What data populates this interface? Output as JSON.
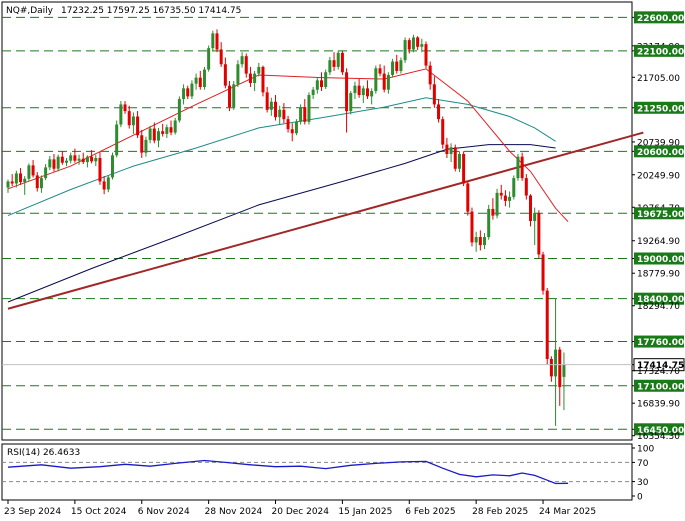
{
  "header": {
    "symbol": "NQ#,Daily",
    "ohlc": "17232.25 17597.25 16735.50 17414.75"
  },
  "colors": {
    "bull": "#2e8b2e",
    "bear": "#e00000",
    "ema20": "#e02020",
    "ema50": "#1f8a8a",
    "ema200": "#0a0a50",
    "trend": "#a02828",
    "level": "#1a7a1a",
    "rsi": "#1a1acc",
    "price_box": "#000000"
  },
  "chart_data": [
    {
      "type": "candlestick",
      "title": "NQ#,Daily",
      "ylim": [
        16350,
        22650
      ],
      "y_ticks": [
        "22600.00",
        "22174.90",
        "22100.00",
        "21705.00",
        "21250.00",
        "20739.90",
        "20600.00",
        "20249.90",
        "19764.70",
        "19675.00",
        "19264.90",
        "19000.00",
        "18779.90",
        "18400.00",
        "18294.70",
        "17760.00",
        "17414.75",
        "17324.70",
        "17100.00",
        "16839.90",
        "16450.00",
        "16354.30"
      ],
      "x_ticks": [
        "23 Sep 2024",
        "15 Oct 2024",
        "6 Nov 2024",
        "28 Nov 2024",
        "20 Dec 2024",
        "15 Jan 2025",
        "6 Feb 2025",
        "28 Feb 2025",
        "24 Mar 2025"
      ],
      "x_tick_index": [
        0,
        16,
        32,
        48,
        64,
        80,
        96,
        112,
        128
      ],
      "levels": [
        {
          "label": "22600.00",
          "value": 22600
        },
        {
          "label": "22100.00",
          "value": 22100
        },
        {
          "label": "21250.00",
          "value": 21250
        },
        {
          "label": "20600.00",
          "value": 20600
        },
        {
          "label": "19675.00",
          "value": 19675
        },
        {
          "label": "19000.00",
          "value": 19000
        },
        {
          "label": "18400.00",
          "value": 18400
        },
        {
          "label": "17760.00",
          "value": 17760
        },
        {
          "label": "17100.00",
          "value": 17100
        },
        {
          "label": "16450.00",
          "value": 16450
        }
      ],
      "current_price": {
        "label": "17414.75",
        "value": 17414.75
      },
      "trendline": {
        "start": [
          0,
          18250
        ],
        "end": [
          152,
          20880
        ]
      },
      "candles": [
        [
          20060,
          20180,
          19980,
          20150
        ],
        [
          20150,
          20260,
          20080,
          20120
        ],
        [
          20120,
          20310,
          20060,
          20270
        ],
        [
          20270,
          20350,
          20100,
          20140
        ],
        [
          20140,
          20230,
          19950,
          20190
        ],
        [
          20190,
          20420,
          20150,
          20390
        ],
        [
          20390,
          20470,
          20210,
          20240
        ],
        [
          20240,
          20290,
          20000,
          20050
        ],
        [
          20050,
          20240,
          19980,
          20200
        ],
        [
          20200,
          20410,
          20170,
          20360
        ],
        [
          20360,
          20530,
          20320,
          20480
        ],
        [
          20480,
          20560,
          20300,
          20340
        ],
        [
          20340,
          20550,
          20300,
          20520
        ],
        [
          20520,
          20600,
          20400,
          20430
        ],
        [
          20430,
          20500,
          20380,
          20460
        ],
        [
          20460,
          20580,
          20420,
          20540
        ],
        [
          20540,
          20640,
          20430,
          20460
        ],
        [
          20460,
          20550,
          20400,
          20490
        ],
        [
          20490,
          20580,
          20410,
          20440
        ],
        [
          20440,
          20540,
          20360,
          20520
        ],
        [
          20520,
          20620,
          20420,
          20450
        ],
        [
          20450,
          20550,
          20380,
          20500
        ],
        [
          20500,
          20590,
          20100,
          20150
        ],
        [
          20150,
          20230,
          19960,
          20030
        ],
        [
          20030,
          20240,
          19990,
          20210
        ],
        [
          20210,
          20580,
          20180,
          20540
        ],
        [
          20540,
          21060,
          20510,
          21000
        ],
        [
          21000,
          21350,
          20960,
          21300
        ],
        [
          21300,
          21350,
          21160,
          21200
        ],
        [
          21200,
          21280,
          20940,
          20990
        ],
        [
          20990,
          21180,
          20860,
          21120
        ],
        [
          21120,
          21200,
          20800,
          20840
        ],
        [
          20840,
          20920,
          20500,
          20580
        ],
        [
          20580,
          20820,
          20520,
          20770
        ],
        [
          20770,
          20980,
          20720,
          20940
        ],
        [
          20940,
          21030,
          20720,
          20760
        ],
        [
          20760,
          20950,
          20660,
          20900
        ],
        [
          20900,
          21010,
          20820,
          20860
        ],
        [
          20860,
          21000,
          20800,
          20960
        ],
        [
          20960,
          21060,
          20840,
          20880
        ],
        [
          20880,
          21100,
          20850,
          21060
        ],
        [
          21060,
          21420,
          21030,
          21380
        ],
        [
          21380,
          21600,
          21300,
          21540
        ],
        [
          21540,
          21580,
          21380,
          21420
        ],
        [
          21420,
          21660,
          21380,
          21610
        ],
        [
          21610,
          21760,
          21520,
          21700
        ],
        [
          21700,
          21800,
          21520,
          21560
        ],
        [
          21560,
          21860,
          21520,
          21820
        ],
        [
          21820,
          22180,
          21790,
          22140
        ],
        [
          22140,
          22400,
          22090,
          22360
        ],
        [
          22360,
          22420,
          22080,
          22120
        ],
        [
          22120,
          22230,
          21860,
          21900
        ],
        [
          21900,
          22000,
          21540,
          21580
        ],
        [
          21580,
          21650,
          21200,
          21260
        ],
        [
          21260,
          21650,
          21220,
          21600
        ],
        [
          21600,
          21960,
          21560,
          21900
        ],
        [
          21900,
          22080,
          21850,
          22020
        ],
        [
          22020,
          22060,
          21700,
          21760
        ],
        [
          21760,
          21860,
          21560,
          21620
        ],
        [
          21620,
          21800,
          21500,
          21760
        ],
        [
          21760,
          21920,
          21720,
          21860
        ],
        [
          21860,
          21880,
          21420,
          21480
        ],
        [
          21480,
          21560,
          21180,
          21220
        ],
        [
          21220,
          21400,
          21130,
          21340
        ],
        [
          21340,
          21440,
          21060,
          21110
        ],
        [
          21110,
          21280,
          21000,
          21220
        ],
        [
          21220,
          21320,
          21020,
          21080
        ],
        [
          21080,
          21130,
          20880,
          20930
        ],
        [
          20930,
          21020,
          20750,
          20870
        ],
        [
          20870,
          21080,
          20840,
          21040
        ],
        [
          21040,
          21300,
          21000,
          21260
        ],
        [
          21260,
          21380,
          21000,
          21040
        ],
        [
          21040,
          21480,
          21000,
          21440
        ],
        [
          21440,
          21560,
          21380,
          21520
        ],
        [
          21520,
          21700,
          21460,
          21660
        ],
        [
          21660,
          21780,
          21500,
          21560
        ],
        [
          21560,
          21820,
          21530,
          21780
        ],
        [
          21780,
          22010,
          21740,
          21960
        ],
        [
          21960,
          22080,
          21800,
          21860
        ],
        [
          21860,
          22100,
          21820,
          22070
        ],
        [
          22070,
          22100,
          21740,
          21780
        ],
        [
          21780,
          21840,
          20880,
          21200
        ],
        [
          21200,
          21500,
          21150,
          21470
        ],
        [
          21470,
          21640,
          21380,
          21580
        ],
        [
          21580,
          21680,
          21400,
          21440
        ],
        [
          21440,
          21580,
          21320,
          21540
        ],
        [
          21540,
          21660,
          21380,
          21420
        ],
        [
          21420,
          21540,
          21300,
          21500
        ],
        [
          21500,
          21880,
          21460,
          21840
        ],
        [
          21840,
          21900,
          21720,
          21760
        ],
        [
          21760,
          21880,
          21480,
          21520
        ],
        [
          21520,
          21780,
          21460,
          21740
        ],
        [
          21740,
          21980,
          21700,
          21940
        ],
        [
          21940,
          22040,
          21760,
          21800
        ],
        [
          21800,
          22000,
          21760,
          21960
        ],
        [
          21960,
          22300,
          21920,
          22260
        ],
        [
          22260,
          22290,
          22060,
          22120
        ],
        [
          22120,
          22340,
          22080,
          22300
        ],
        [
          22300,
          22320,
          22110,
          22160
        ],
        [
          22160,
          22280,
          22080,
          22200
        ],
        [
          22200,
          22240,
          21840,
          21880
        ],
        [
          21880,
          21940,
          21520,
          21600
        ],
        [
          21600,
          21720,
          21250,
          21300
        ],
        [
          21300,
          21380,
          21030,
          21080
        ],
        [
          21080,
          21120,
          20640,
          20700
        ],
        [
          20700,
          20800,
          20500,
          20560
        ],
        [
          20560,
          20720,
          20440,
          20660
        ],
        [
          20660,
          20700,
          20300,
          20340
        ],
        [
          20340,
          20600,
          20290,
          20560
        ],
        [
          20560,
          20600,
          20080,
          20120
        ],
        [
          20120,
          20160,
          19640,
          19700
        ],
        [
          19700,
          19760,
          19180,
          19240
        ],
        [
          19240,
          19400,
          19100,
          19320
        ],
        [
          19320,
          19420,
          19120,
          19200
        ],
        [
          19200,
          19380,
          19140,
          19320
        ],
        [
          19320,
          19800,
          19280,
          19740
        ],
        [
          19740,
          19900,
          19580,
          19640
        ],
        [
          19640,
          20040,
          19600,
          19980
        ],
        [
          19980,
          20100,
          19880,
          19940
        ],
        [
          19940,
          20020,
          19780,
          19860
        ],
        [
          19860,
          20000,
          19760,
          19920
        ],
        [
          19920,
          20240,
          19880,
          20200
        ],
        [
          20200,
          20560,
          20160,
          20520
        ],
        [
          20520,
          20580,
          20160,
          20200
        ],
        [
          20200,
          20260,
          19880,
          19940
        ],
        [
          19940,
          19960,
          19480,
          19560
        ],
        [
          19560,
          19760,
          19200,
          19680
        ],
        [
          19680,
          19720,
          19000,
          19060
        ],
        [
          19060,
          19100,
          18460,
          18520
        ],
        [
          18520,
          18560,
          17420,
          17500
        ],
        [
          17500,
          17540,
          17160,
          17240
        ],
        [
          17240,
          18400,
          16500,
          17640
        ],
        [
          17640,
          17680,
          16800,
          17080
        ],
        [
          17232.25,
          17597.25,
          16735.5,
          17414.75
        ]
      ],
      "ema20": [
        [
          0,
          20040
        ],
        [
          15,
          20380
        ],
        [
          30,
          20840
        ],
        [
          45,
          21300
        ],
        [
          60,
          21740
        ],
        [
          75,
          21700
        ],
        [
          90,
          21680
        ],
        [
          100,
          21830
        ],
        [
          110,
          21350
        ],
        [
          120,
          20600
        ],
        [
          125,
          20300
        ],
        [
          131,
          19750
        ],
        [
          134,
          19550
        ]
      ],
      "ema50": [
        [
          0,
          19640
        ],
        [
          15,
          20030
        ],
        [
          30,
          20380
        ],
        [
          45,
          20650
        ],
        [
          60,
          20950
        ],
        [
          75,
          21100
        ],
        [
          90,
          21260
        ],
        [
          100,
          21400
        ],
        [
          110,
          21300
        ],
        [
          120,
          21120
        ],
        [
          126,
          20950
        ],
        [
          131,
          20750
        ]
      ],
      "ema200": [
        [
          0,
          18350
        ],
        [
          20,
          18850
        ],
        [
          40,
          19320
        ],
        [
          60,
          19800
        ],
        [
          80,
          20150
        ],
        [
          95,
          20420
        ],
        [
          105,
          20630
        ],
        [
          115,
          20700
        ],
        [
          125,
          20700
        ],
        [
          131,
          20650
        ]
      ]
    },
    {
      "type": "line",
      "title": "RSI(14) 26.4633",
      "ylim": [
        0,
        100
      ],
      "y_ticks": [
        "100",
        "70",
        "30",
        "0"
      ],
      "levels": [
        70,
        30
      ],
      "values": [
        [
          0,
          60
        ],
        [
          8,
          65
        ],
        [
          15,
          58
        ],
        [
          22,
          61
        ],
        [
          28,
          66
        ],
        [
          34,
          62
        ],
        [
          40,
          68
        ],
        [
          47,
          74
        ],
        [
          52,
          70
        ],
        [
          58,
          65
        ],
        [
          64,
          61
        ],
        [
          70,
          62
        ],
        [
          76,
          57
        ],
        [
          82,
          64
        ],
        [
          88,
          68
        ],
        [
          94,
          71
        ],
        [
          100,
          72
        ],
        [
          104,
          58
        ],
        [
          108,
          45
        ],
        [
          112,
          40
        ],
        [
          116,
          44
        ],
        [
          120,
          42
        ],
        [
          123,
          48
        ],
        [
          126,
          43
        ],
        [
          129,
          33
        ],
        [
          131,
          26
        ],
        [
          134,
          26.4633
        ]
      ]
    }
  ]
}
